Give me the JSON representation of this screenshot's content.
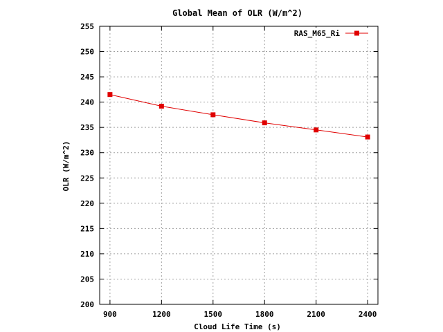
{
  "chart_data": {
    "type": "line",
    "title": "Global Mean of OLR (W/m^2)",
    "xlabel": "Cloud Life Time (s)",
    "ylabel": "OLR (W/m^2)",
    "xlim": [
      840,
      2460
    ],
    "ylim": [
      200,
      255
    ],
    "x_ticks": [
      900,
      1200,
      1500,
      1800,
      2100,
      2400
    ],
    "y_ticks": [
      200,
      205,
      210,
      215,
      220,
      225,
      230,
      235,
      240,
      245,
      250,
      255
    ],
    "grid": true,
    "legend_position": "top-right",
    "series": [
      {
        "name": "RAS_M65_Ri",
        "color": "#e00000",
        "marker": "square",
        "x": [
          900,
          1200,
          1500,
          1800,
          2100,
          2400
        ],
        "values": [
          241.5,
          239.2,
          237.5,
          235.9,
          234.5,
          233.1
        ]
      }
    ]
  }
}
